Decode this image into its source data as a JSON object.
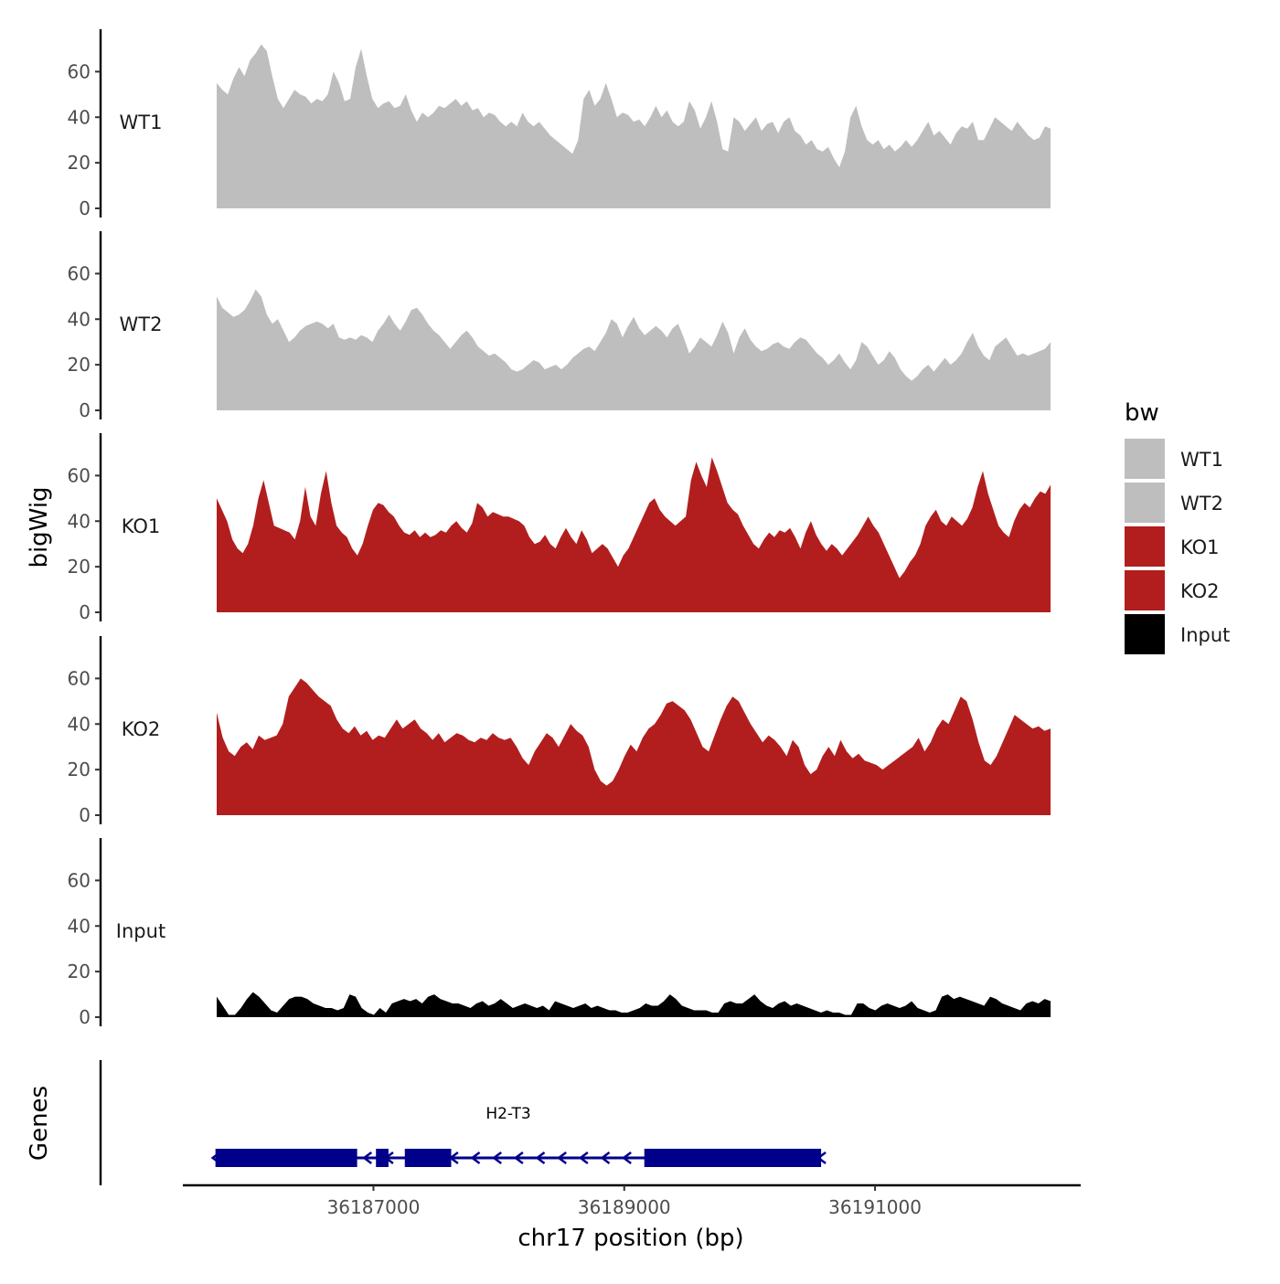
{
  "chart_data": {
    "type": "area",
    "y_axis_title": "bigWig",
    "x_axis_title": "chr17 position (bp)",
    "x_ticks": [
      36187000,
      36189000,
      36191000
    ],
    "xlim": [
      36185480,
      36192640
    ],
    "data_range": [
      36185750,
      36192400
    ],
    "y_ticks": [
      0,
      20,
      40,
      60
    ],
    "ylim": [
      0,
      77
    ],
    "legend": {
      "title": "bw",
      "position": "right",
      "entries": [
        {
          "label": "WT1",
          "color": "#bebebe"
        },
        {
          "label": "WT2",
          "color": "#bebebe"
        },
        {
          "label": "KO1",
          "color": "#b21e1e"
        },
        {
          "label": "KO2",
          "color": "#b21e1e"
        },
        {
          "label": "Input",
          "color": "#000000"
        }
      ]
    },
    "series": [
      {
        "name": "WT1",
        "color": "#bebebe",
        "x_start": 36185750,
        "x_end": 36192400,
        "values": [
          55,
          52,
          50,
          57,
          62,
          58,
          65,
          68,
          72,
          69,
          58,
          48,
          44,
          48,
          52,
          50,
          49,
          46,
          48,
          47,
          50,
          60,
          55,
          47,
          48,
          62,
          70,
          58,
          48,
          44,
          46,
          47,
          44,
          45,
          50,
          43,
          38,
          42,
          40,
          42,
          45,
          44,
          46,
          48,
          45,
          47,
          43,
          44,
          40,
          42,
          41,
          38,
          36,
          38,
          36,
          42,
          38,
          36,
          38,
          35,
          32,
          30,
          28,
          26,
          24,
          30,
          48,
          52,
          45,
          48,
          55,
          48,
          40,
          42,
          41,
          38,
          39,
          36,
          40,
          45,
          40,
          43,
          38,
          36,
          38,
          47,
          43,
          35,
          40,
          47,
          38,
          26,
          25,
          40,
          38,
          34,
          37,
          40,
          34,
          37,
          38,
          33,
          38,
          40,
          34,
          32,
          28,
          30,
          26,
          25,
          27,
          22,
          18,
          25,
          40,
          45,
          36,
          30,
          28,
          30,
          26,
          28,
          25,
          27,
          30,
          27,
          30,
          34,
          38,
          32,
          34,
          31,
          28,
          33,
          36,
          35,
          38,
          30,
          30,
          35,
          40,
          38,
          36,
          34,
          38,
          35,
          32,
          30,
          31,
          36,
          35
        ]
      },
      {
        "name": "WT2",
        "color": "#bebebe",
        "x_start": 36185750,
        "x_end": 36192400,
        "values": [
          50,
          45,
          43,
          41,
          42,
          44,
          48,
          53,
          50,
          42,
          38,
          40,
          35,
          30,
          32,
          35,
          37,
          38,
          39,
          38,
          36,
          38,
          32,
          31,
          32,
          31,
          33,
          32,
          30,
          35,
          38,
          42,
          38,
          35,
          39,
          44,
          45,
          42,
          38,
          35,
          33,
          30,
          27,
          30,
          33,
          35,
          32,
          28,
          26,
          24,
          25,
          23,
          21,
          18,
          17,
          18,
          20,
          22,
          21,
          18,
          19,
          20,
          18,
          20,
          23,
          25,
          27,
          28,
          26,
          30,
          34,
          40,
          38,
          32,
          37,
          41,
          36,
          33,
          35,
          37,
          35,
          32,
          36,
          38,
          32,
          25,
          28,
          32,
          30,
          28,
          33,
          39,
          34,
          25,
          32,
          36,
          31,
          28,
          26,
          27,
          29,
          30,
          28,
          27,
          30,
          32,
          31,
          28,
          25,
          23,
          20,
          22,
          25,
          21,
          18,
          22,
          30,
          28,
          24,
          20,
          22,
          26,
          23,
          18,
          15,
          13,
          15,
          18,
          20,
          17,
          20,
          23,
          20,
          22,
          25,
          30,
          34,
          28,
          24,
          22,
          28,
          30,
          32,
          28,
          24,
          25,
          24,
          25,
          26,
          27,
          30
        ]
      },
      {
        "name": "KO1",
        "color": "#b21e1e",
        "x_start": 36185750,
        "x_end": 36192400,
        "values": [
          50,
          45,
          40,
          32,
          28,
          26,
          30,
          38,
          50,
          58,
          48,
          38,
          37,
          36,
          35,
          32,
          40,
          55,
          42,
          38,
          52,
          62,
          48,
          38,
          35,
          33,
          28,
          25,
          30,
          38,
          45,
          48,
          47,
          44,
          42,
          38,
          35,
          34,
          36,
          33,
          35,
          33,
          34,
          36,
          35,
          38,
          40,
          37,
          35,
          39,
          48,
          46,
          42,
          44,
          43,
          42,
          42,
          41,
          40,
          38,
          33,
          30,
          31,
          34,
          30,
          28,
          33,
          37,
          33,
          30,
          36,
          32,
          26,
          28,
          30,
          28,
          24,
          20,
          25,
          28,
          33,
          38,
          43,
          48,
          50,
          45,
          42,
          40,
          38,
          40,
          42,
          58,
          66,
          60,
          55,
          68,
          62,
          55,
          48,
          45,
          43,
          38,
          34,
          30,
          28,
          32,
          35,
          33,
          36,
          35,
          37,
          33,
          28,
          35,
          40,
          34,
          30,
          27,
          30,
          28,
          25,
          28,
          31,
          34,
          38,
          42,
          38,
          35,
          30,
          25,
          20,
          15,
          18,
          22,
          25,
          30,
          38,
          42,
          45,
          40,
          38,
          42,
          40,
          38,
          41,
          46,
          55,
          62,
          52,
          45,
          38,
          35,
          33,
          40,
          45,
          48,
          46,
          50,
          53,
          52,
          56
        ]
      },
      {
        "name": "KO2",
        "color": "#b21e1e",
        "x_start": 36185750,
        "x_end": 36192400,
        "values": [
          45,
          34,
          28,
          26,
          30,
          32,
          29,
          35,
          33,
          34,
          35,
          40,
          52,
          56,
          60,
          58,
          55,
          52,
          50,
          48,
          42,
          38,
          36,
          39,
          35,
          37,
          33,
          35,
          34,
          38,
          42,
          38,
          40,
          42,
          38,
          36,
          33,
          36,
          32,
          34,
          36,
          35,
          33,
          32,
          34,
          33,
          36,
          34,
          33,
          34,
          30,
          25,
          22,
          28,
          32,
          36,
          34,
          30,
          35,
          40,
          37,
          35,
          30,
          20,
          15,
          13,
          15,
          20,
          26,
          31,
          28,
          34,
          38,
          40,
          44,
          49,
          50,
          48,
          46,
          42,
          36,
          30,
          28,
          35,
          42,
          48,
          52,
          50,
          45,
          40,
          36,
          32,
          35,
          33,
          30,
          26,
          33,
          30,
          22,
          18,
          20,
          26,
          30,
          26,
          33,
          28,
          25,
          27,
          24,
          23,
          22,
          20,
          22,
          24,
          26,
          28,
          30,
          34,
          28,
          32,
          38,
          42,
          40,
          46,
          52,
          50,
          42,
          32,
          24,
          22,
          26,
          32,
          38,
          44,
          42,
          40,
          38,
          39,
          37,
          38
        ]
      },
      {
        "name": "Input",
        "color": "#000000",
        "x_start": 36185750,
        "x_end": 36192400,
        "values": [
          9,
          5,
          1,
          1,
          4,
          8,
          11,
          9,
          6,
          3,
          2,
          5,
          8,
          9,
          9,
          8,
          6,
          5,
          4,
          4,
          3,
          4,
          10,
          9,
          4,
          2,
          1,
          4,
          2,
          6,
          7,
          8,
          7,
          8,
          6,
          9,
          10,
          8,
          7,
          6,
          6,
          5,
          4,
          6,
          7,
          5,
          6,
          8,
          6,
          4,
          5,
          6,
          5,
          4,
          5,
          3,
          7,
          6,
          5,
          4,
          5,
          6,
          4,
          5,
          4,
          3,
          3,
          2,
          2,
          3,
          4,
          6,
          5,
          5,
          7,
          10,
          8,
          5,
          4,
          3,
          3,
          3,
          2,
          2,
          6,
          7,
          6,
          6,
          8,
          10,
          7,
          5,
          4,
          6,
          7,
          5,
          6,
          5,
          4,
          3,
          2,
          3,
          2,
          2,
          1,
          1,
          6,
          6,
          4,
          3,
          5,
          6,
          5,
          4,
          5,
          7,
          4,
          3,
          2,
          3,
          9,
          10,
          8,
          9,
          8,
          7,
          6,
          5,
          9,
          8,
          6,
          5,
          4,
          3,
          6,
          7,
          6,
          8,
          7
        ]
      }
    ],
    "genes_track": {
      "label": "Genes",
      "gene_name": "H2-T3",
      "color": "#00008b",
      "strand": "-",
      "start": 36185740,
      "end": 36190570,
      "exons": [
        [
          36185740,
          36186870
        ],
        [
          36187020,
          36187120
        ],
        [
          36187250,
          36187620
        ],
        [
          36189160,
          36190570
        ]
      ]
    }
  }
}
